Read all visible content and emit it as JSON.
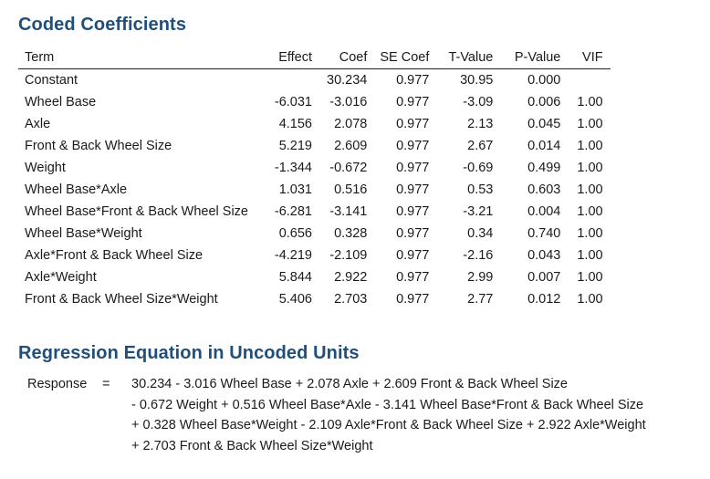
{
  "coded_coefficients": {
    "title": "Coded Coefficients",
    "headers": {
      "term": "Term",
      "effect": "Effect",
      "coef": "Coef",
      "se_coef": "SE Coef",
      "t_value": "T-Value",
      "p_value": "P-Value",
      "vif": "VIF"
    },
    "rows": [
      {
        "term": "Constant",
        "effect": "",
        "coef": "30.234",
        "se_coef": "0.977",
        "t_value": "30.95",
        "p_value": "0.000",
        "vif": ""
      },
      {
        "term": "Wheel Base",
        "effect": "-6.031",
        "coef": "-3.016",
        "se_coef": "0.977",
        "t_value": "-3.09",
        "p_value": "0.006",
        "vif": "1.00"
      },
      {
        "term": "Axle",
        "effect": "4.156",
        "coef": "2.078",
        "se_coef": "0.977",
        "t_value": "2.13",
        "p_value": "0.045",
        "vif": "1.00"
      },
      {
        "term": "Front & Back Wheel Size",
        "effect": "5.219",
        "coef": "2.609",
        "se_coef": "0.977",
        "t_value": "2.67",
        "p_value": "0.014",
        "vif": "1.00"
      },
      {
        "term": "Weight",
        "effect": "-1.344",
        "coef": "-0.672",
        "se_coef": "0.977",
        "t_value": "-0.69",
        "p_value": "0.499",
        "vif": "1.00"
      },
      {
        "term": "Wheel Base*Axle",
        "effect": "1.031",
        "coef": "0.516",
        "se_coef": "0.977",
        "t_value": "0.53",
        "p_value": "0.603",
        "vif": "1.00"
      },
      {
        "term": "Wheel Base*Front & Back Wheel Size",
        "effect": "-6.281",
        "coef": "-3.141",
        "se_coef": "0.977",
        "t_value": "-3.21",
        "p_value": "0.004",
        "vif": "1.00"
      },
      {
        "term": "Wheel Base*Weight",
        "effect": "0.656",
        "coef": "0.328",
        "se_coef": "0.977",
        "t_value": "0.34",
        "p_value": "0.740",
        "vif": "1.00"
      },
      {
        "term": "Axle*Front & Back Wheel Size",
        "effect": "-4.219",
        "coef": "-2.109",
        "se_coef": "0.977",
        "t_value": "-2.16",
        "p_value": "0.043",
        "vif": "1.00"
      },
      {
        "term": "Axle*Weight",
        "effect": "5.844",
        "coef": "2.922",
        "se_coef": "0.977",
        "t_value": "2.99",
        "p_value": "0.007",
        "vif": "1.00"
      },
      {
        "term": "Front & Back Wheel Size*Weight",
        "effect": "5.406",
        "coef": "2.703",
        "se_coef": "0.977",
        "t_value": "2.77",
        "p_value": "0.012",
        "vif": "1.00"
      }
    ]
  },
  "regression_equation": {
    "title": "Regression Equation in Uncoded Units",
    "label": "Response",
    "equals": "=",
    "lines": [
      "30.234 - 3.016 Wheel Base + 2.078 Axle + 2.609 Front & Back Wheel Size",
      "- 0.672 Weight + 0.516 Wheel Base*Axle - 3.141 Wheel Base*Front & Back Wheel Size",
      "+ 0.328 Wheel Base*Weight - 2.109 Axle*Front & Back Wheel Size + 2.922 Axle*Weight",
      "+ 2.703 Front & Back Wheel Size*Weight"
    ]
  },
  "colors": {
    "heading": "#1f4f7a",
    "text": "#1a1a1a",
    "rule": "#222222",
    "background": "#ffffff"
  }
}
